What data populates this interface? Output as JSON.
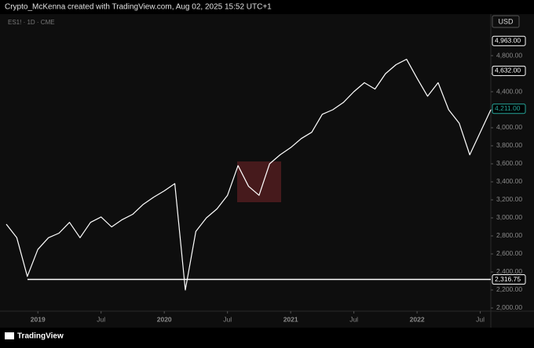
{
  "chart_data": {
    "type": "line",
    "header": "Crypto_McKenna created with TradingView.com, Aug 02, 2025 15:52 UTC+1",
    "symbol": "ES1! · 1D · CME",
    "currency": "USD",
    "brand": "TradingView",
    "color": "#ffffff",
    "x": [
      "2018-10",
      "2018-11",
      "2018-12",
      "2019-01",
      "2019-02",
      "2019-03",
      "2019-04",
      "2019-05",
      "2019-06",
      "2019-07",
      "2019-08",
      "2019-09",
      "2019-10",
      "2019-11",
      "2019-12",
      "2020-01",
      "2020-02",
      "2020-03",
      "2020-04",
      "2020-05",
      "2020-06",
      "2020-07",
      "2020-08",
      "2020-09",
      "2020-10",
      "2020-11",
      "2020-12",
      "2021-01",
      "2021-02",
      "2021-03",
      "2021-04",
      "2021-05",
      "2021-06",
      "2021-07",
      "2021-08",
      "2021-09",
      "2021-10",
      "2021-11",
      "2021-12",
      "2022-01",
      "2022-02",
      "2022-03",
      "2022-04",
      "2022-05",
      "2022-06",
      "2022-07",
      "2022-08"
    ],
    "values": [
      2930,
      2780,
      2350,
      2650,
      2780,
      2830,
      2950,
      2780,
      2950,
      3010,
      2900,
      2980,
      3040,
      3150,
      3230,
      3300,
      3380,
      2200,
      2850,
      3000,
      3100,
      3250,
      3580,
      3350,
      3250,
      3600,
      3700,
      3780,
      3880,
      3950,
      4150,
      4200,
      4280,
      4400,
      4500,
      4430,
      4600,
      4700,
      4760,
      4550,
      4350,
      4500,
      4200,
      4050,
      3700,
      3950,
      4200
    ],
    "xlim": [
      "2018-10",
      "2022-08"
    ],
    "xticks": [
      {
        "value": "2019-01",
        "label": "2019"
      },
      {
        "value": "2019-07",
        "label": "Jul"
      },
      {
        "value": "2020-01",
        "label": "2020"
      },
      {
        "value": "2020-07",
        "label": "Jul"
      },
      {
        "value": "2021-01",
        "label": "2021"
      },
      {
        "value": "2021-07",
        "label": "Jul"
      },
      {
        "value": "2022-01",
        "label": "2022"
      },
      {
        "value": "2022-07",
        "label": "Jul"
      }
    ],
    "ylim": [
      1965,
      5261
    ],
    "yticks": [
      {
        "value": 2000,
        "label": "2,000.00"
      },
      {
        "value": 2200,
        "label": "2,200.00"
      },
      {
        "value": 2400,
        "label": "2,400.00"
      },
      {
        "value": 2600,
        "label": "2,600.00"
      },
      {
        "value": 2800,
        "label": "2,800.00"
      },
      {
        "value": 3000,
        "label": "3,000.00"
      },
      {
        "value": 3200,
        "label": "3,200.00"
      },
      {
        "value": 3400,
        "label": "3,400.00"
      },
      {
        "value": 3600,
        "label": "3,600.00"
      },
      {
        "value": 3800,
        "label": "3,800.00"
      },
      {
        "value": 4000,
        "label": "4,000.00"
      },
      {
        "value": 4200,
        "label": "4,200.00"
      },
      {
        "value": 4400,
        "label": "4,400.00"
      },
      {
        "value": 4600,
        "label": "4,600.00"
      },
      {
        "value": 4800,
        "label": "4,800.00"
      }
    ],
    "price_markers": [
      {
        "value": 4963,
        "label": "4,963.00",
        "color": "#ffffff"
      },
      {
        "value": 4632,
        "label": "4,632.00",
        "color": "#ffffff"
      },
      {
        "value": 4211,
        "label": "4,211.00",
        "color": "#26a69a"
      }
    ],
    "hline": {
      "value": 2316.75,
      "label": "2,316.75",
      "color": "#ffffff"
    }
  }
}
